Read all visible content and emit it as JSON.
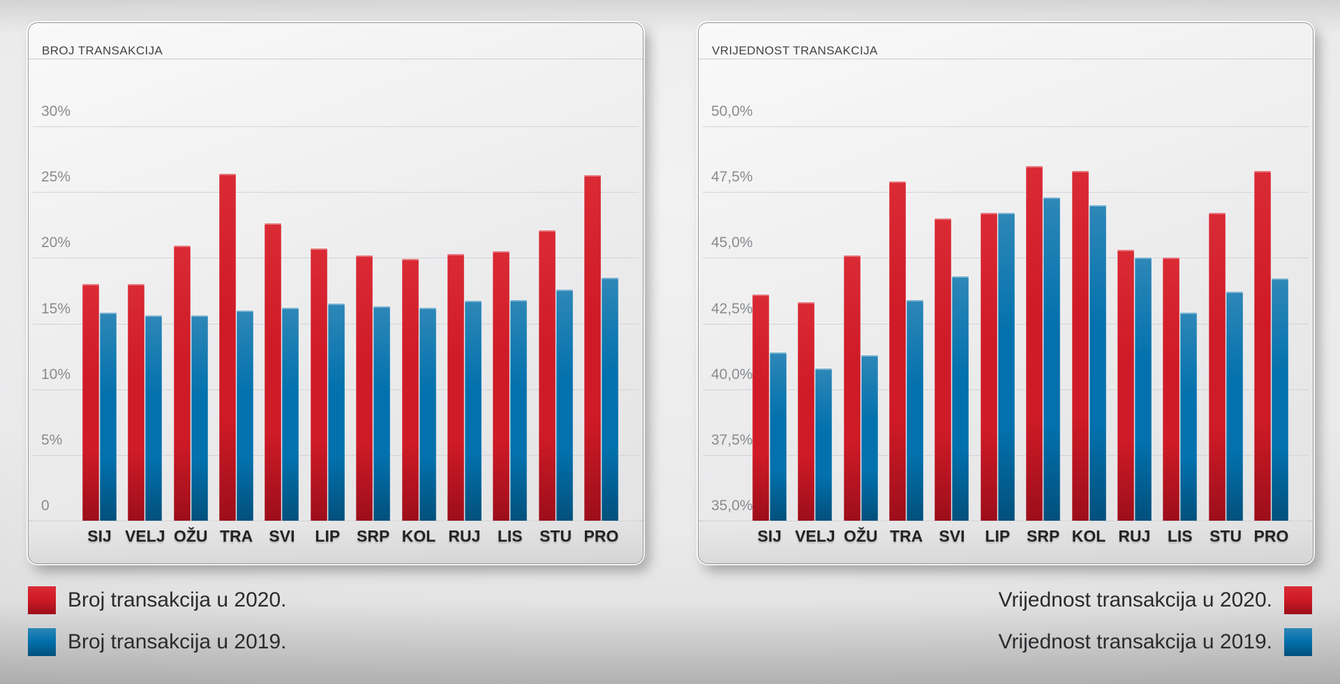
{
  "colors": {
    "red": {
      "top": "#da2b35",
      "main": "#cf1b27",
      "dark": "#9c0e1a"
    },
    "blue": {
      "top": "#2e87b7",
      "main": "#0271ad",
      "dark": "#02507c"
    }
  },
  "chart_data": [
    {
      "type": "bar",
      "title": "BROJ TRANSAKCIJA",
      "categories": [
        "SIJ",
        "VELJ",
        "OŽU",
        "TRA",
        "SVI",
        "LIP",
        "SRP",
        "KOL",
        "RUJ",
        "LIS",
        "STU",
        "PRO"
      ],
      "series": [
        {
          "name": "Broj transakcija u 2020.",
          "year": "2020",
          "color_key": "red",
          "values": [
            18.0,
            18.0,
            20.9,
            26.4,
            22.6,
            20.7,
            20.2,
            19.9,
            20.3,
            20.5,
            22.1,
            26.3
          ]
        },
        {
          "name": "Broj transakcija u 2019.",
          "year": "2019",
          "color_key": "blue",
          "values": [
            15.8,
            15.6,
            15.6,
            16.0,
            16.2,
            16.5,
            16.3,
            16.2,
            16.7,
            16.8,
            17.6,
            18.5
          ]
        }
      ],
      "ylim": [
        0,
        30
      ],
      "y_tick_labels": [
        "30%",
        "25%",
        "20%",
        "15%",
        "10%",
        "5%",
        "0"
      ],
      "xlabel": "",
      "ylabel": "",
      "grid": true,
      "legend_position": "bottom-left"
    },
    {
      "type": "bar",
      "title": "VRIJEDNOST TRANSAKCIJA",
      "categories": [
        "SIJ",
        "VELJ",
        "OŽU",
        "TRA",
        "SVI",
        "LIP",
        "SRP",
        "KOL",
        "RUJ",
        "LIS",
        "STU",
        "PRO"
      ],
      "series": [
        {
          "name": "Vrijednost transakcija u 2020.",
          "year": "2020",
          "color_key": "red",
          "values": [
            43.6,
            43.3,
            45.1,
            47.9,
            46.5,
            46.7,
            48.5,
            48.3,
            45.3,
            45.0,
            46.7,
            48.3
          ]
        },
        {
          "name": "Vrijednost transakcija u 2019.",
          "year": "2019",
          "color_key": "blue",
          "values": [
            41.4,
            40.8,
            41.3,
            43.4,
            44.3,
            46.7,
            47.3,
            47.0,
            45.0,
            42.9,
            43.7,
            44.2
          ]
        }
      ],
      "ylim": [
        35,
        50
      ],
      "y_tick_labels": [
        "50,0%",
        "47,5%",
        "45,0%",
        "42,5%",
        "40,0%",
        "37,5%",
        "35,0%"
      ],
      "xlabel": "",
      "ylabel": "",
      "grid": true,
      "legend_position": "bottom-right"
    }
  ]
}
